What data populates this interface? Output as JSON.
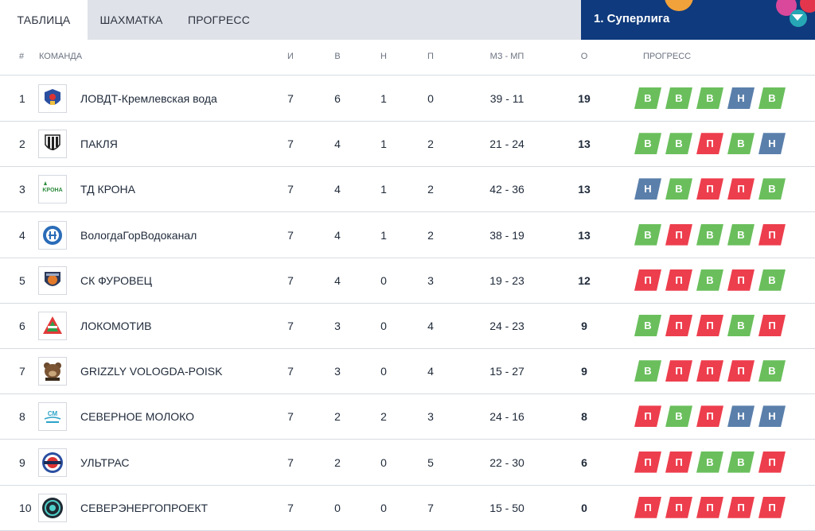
{
  "tabs": [
    {
      "label": "ТАБЛИЦА",
      "active": true
    },
    {
      "label": "ШАХМАТКА",
      "active": false
    },
    {
      "label": "ПРОГРЕСС",
      "active": false
    }
  ],
  "league": {
    "label": "1. Суперлига"
  },
  "columns": {
    "rank": "#",
    "team": "КОМАНДА",
    "played": "И",
    "won": "В",
    "drawn": "Н",
    "lost": "П",
    "goals": "МЗ - МП",
    "points": "О",
    "progress": "ПРОГРЕСС"
  },
  "colors": {
    "win": "#6abf5c",
    "loss": "#ed3e4d",
    "draw": "#5a7fab",
    "league_bg": "#0f3a7d",
    "tabbar_bg": "#dfe2e8"
  },
  "rows": [
    {
      "rank": "1",
      "team": "ЛОВДТ-Кремлевская вода",
      "logo": "lovdt-crest-icon",
      "played": "7",
      "won": "6",
      "drawn": "1",
      "lost": "0",
      "goals": "39 - 11",
      "points": "19",
      "progress": [
        "В",
        "В",
        "В",
        "Н",
        "В"
      ]
    },
    {
      "rank": "2",
      "team": "ПАКЛЯ",
      "logo": "paklya-shield-icon",
      "played": "7",
      "won": "4",
      "drawn": "1",
      "lost": "2",
      "goals": "21 - 24",
      "points": "13",
      "progress": [
        "В",
        "В",
        "П",
        "В",
        "Н"
      ]
    },
    {
      "rank": "3",
      "team": "ТД КРОНА",
      "logo": "krona-logo-icon",
      "played": "7",
      "won": "4",
      "drawn": "1",
      "lost": "2",
      "goals": "42 - 36",
      "points": "13",
      "progress": [
        "Н",
        "В",
        "П",
        "П",
        "В"
      ]
    },
    {
      "rank": "4",
      "team": "ВологдаГорВодоканал",
      "logo": "vodokanal-emblem-icon",
      "played": "7",
      "won": "4",
      "drawn": "1",
      "lost": "2",
      "goals": "38 - 19",
      "points": "13",
      "progress": [
        "В",
        "П",
        "В",
        "В",
        "П"
      ]
    },
    {
      "rank": "5",
      "team": "СК ФУРОВЕЦ",
      "logo": "furovets-shield-icon",
      "played": "7",
      "won": "4",
      "drawn": "0",
      "lost": "3",
      "goals": "19 - 23",
      "points": "12",
      "progress": [
        "П",
        "П",
        "В",
        "П",
        "В"
      ]
    },
    {
      "rank": "6",
      "team": "ЛОКОМОТИВ",
      "logo": "lokomotiv-emblem-icon",
      "played": "7",
      "won": "3",
      "drawn": "0",
      "lost": "4",
      "goals": "24 - 23",
      "points": "9",
      "progress": [
        "В",
        "П",
        "П",
        "В",
        "П"
      ]
    },
    {
      "rank": "7",
      "team": "GRIZZLY VOLOGDA-POISK",
      "logo": "grizzly-bear-icon",
      "played": "7",
      "won": "3",
      "drawn": "0",
      "lost": "4",
      "goals": "15 - 27",
      "points": "9",
      "progress": [
        "В",
        "П",
        "П",
        "П",
        "В"
      ]
    },
    {
      "rank": "8",
      "team": "СЕВЕРНОЕ МОЛОКО",
      "logo": "severnoe-moloko-logo-icon",
      "played": "7",
      "won": "2",
      "drawn": "2",
      "lost": "3",
      "goals": "24 - 16",
      "points": "8",
      "progress": [
        "П",
        "В",
        "П",
        "Н",
        "Н"
      ]
    },
    {
      "rank": "9",
      "team": "УЛЬТРАС",
      "logo": "ultras-roundel-icon",
      "played": "7",
      "won": "2",
      "drawn": "0",
      "lost": "5",
      "goals": "22 - 30",
      "points": "6",
      "progress": [
        "П",
        "П",
        "В",
        "В",
        "П"
      ]
    },
    {
      "rank": "10",
      "team": "СЕВЕРЭНЕРГОПРОЕКТ",
      "logo": "severenergoproekt-roundel-icon",
      "played": "7",
      "won": "0",
      "drawn": "0",
      "lost": "7",
      "goals": "15 - 50",
      "points": "0",
      "progress": [
        "П",
        "П",
        "П",
        "П",
        "П"
      ]
    }
  ]
}
